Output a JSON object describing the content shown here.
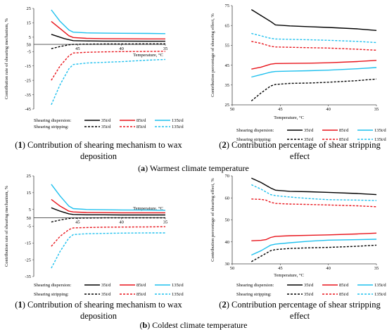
{
  "figure": {
    "section_a": {
      "letter": "a",
      "title": "Warmest climate temperature"
    },
    "section_b": {
      "letter": "b",
      "title": "Coldest climate temperature"
    }
  },
  "chart_data": [
    {
      "id": "a1",
      "type": "line",
      "caption": {
        "num": "1",
        "line1": "Contribution of shearing mechanism to wax",
        "line2": "deposition"
      },
      "xlabel": "Temperature, °C",
      "ylabel": "Contribution rate of shearing mechanism, %",
      "xlim": [
        50,
        35
      ],
      "ylim": [
        -45,
        25
      ],
      "xticks": [
        45,
        40,
        35
      ],
      "xtick_labels": [
        "45",
        "40",
        "35"
      ],
      "yticks": [
        25,
        15,
        5,
        -5,
        -15,
        -25,
        -35,
        -45
      ],
      "ytick_labels": [
        "25",
        "15",
        "5",
        "-5",
        "-15",
        "-25",
        "-35",
        "-45"
      ],
      "origin_label": "50",
      "legend": {
        "dispersion_label": "Shearing dispersion:",
        "stripping_label": "Shearing stripping:",
        "entries": [
          "35t/d",
          "85t/d",
          "135t/d"
        ]
      },
      "series": [
        {
          "name": "35t/d",
          "group": "dispersion",
          "color": "#000000",
          "dashed": false,
          "x": [
            48,
            46.5,
            45.5,
            44,
            42,
            40,
            37,
            35
          ],
          "y": [
            7,
            4,
            2.6,
            2.4,
            2.3,
            2.3,
            2.2,
            2.2
          ]
        },
        {
          "name": "85t/d",
          "group": "dispersion",
          "color": "#e8141b",
          "dashed": false,
          "x": [
            48,
            47,
            46,
            45.5,
            44,
            42,
            40,
            37,
            35
          ],
          "y": [
            16,
            11,
            6,
            4.8,
            4.2,
            4,
            3.9,
            3.8,
            3.8
          ]
        },
        {
          "name": "135t/d",
          "group": "dispersion",
          "color": "#1ec0ee",
          "dashed": false,
          "x": [
            48,
            47,
            46,
            45.5,
            44,
            42,
            40,
            37,
            35
          ],
          "y": [
            24,
            16,
            10,
            8.5,
            8,
            7.8,
            7.7,
            7.6,
            7.5
          ]
        },
        {
          "name": "35t/d",
          "group": "stripping",
          "color": "#000000",
          "dashed": true,
          "x": [
            48,
            47,
            46,
            45.5,
            44,
            42,
            40,
            37,
            35
          ],
          "y": [
            -3,
            -1.5,
            -0.3,
            0,
            0.2,
            0.3,
            0.3,
            0.4,
            0.4
          ]
        },
        {
          "name": "85t/d",
          "group": "stripping",
          "color": "#e8141b",
          "dashed": true,
          "x": [
            48,
            47,
            46,
            45.5,
            44,
            42,
            40,
            37,
            35
          ],
          "y": [
            -25,
            -15,
            -8,
            -6,
            -5.5,
            -5.2,
            -5,
            -4.9,
            -4.8
          ]
        },
        {
          "name": "135t/d",
          "group": "stripping",
          "color": "#1ec0ee",
          "dashed": true,
          "x": [
            48,
            47,
            46,
            45.5,
            44,
            42,
            40,
            37,
            35
          ],
          "y": [
            -42,
            -28,
            -17,
            -14,
            -13,
            -12.5,
            -12,
            -11,
            -10.5
          ]
        }
      ]
    },
    {
      "id": "a2",
      "type": "line",
      "caption": {
        "num": "2",
        "line1": "Contribution percentage of shear stripping",
        "line2": "effect"
      },
      "xlabel": "Temperature, °C",
      "ylabel": "Contribution percentage of shearing effect, %",
      "xlim": [
        50,
        35
      ],
      "ylim": [
        25,
        75
      ],
      "xticks": [
        50,
        45,
        40,
        35
      ],
      "xtick_labels": [
        "50",
        "45",
        "40",
        "35"
      ],
      "yticks": [
        25,
        35,
        45,
        55,
        65,
        75
      ],
      "ytick_labels": [
        "25",
        "35",
        "45",
        "55",
        "65",
        "75"
      ],
      "legend": {
        "dispersion_label": "Shearing dispersion:",
        "stripping_label": "Shearing stripping:",
        "entries": [
          "35t/d",
          "85t/d",
          "135t/d"
        ]
      },
      "series": [
        {
          "name": "35t/d",
          "group": "dispersion",
          "color": "#000000",
          "dashed": false,
          "x": [
            48,
            47,
            46,
            45.5,
            44,
            42,
            40,
            37,
            35
          ],
          "y": [
            73,
            70,
            67,
            65.3,
            64.8,
            64.4,
            64,
            63.3,
            62.5
          ]
        },
        {
          "name": "85t/d",
          "group": "dispersion",
          "color": "#e8141b",
          "dashed": false,
          "x": [
            48,
            47,
            46,
            45.5,
            44,
            42,
            40,
            37,
            35
          ],
          "y": [
            43,
            44,
            45.5,
            45.8,
            45.9,
            46,
            46.2,
            46.8,
            47.4
          ]
        },
        {
          "name": "135t/d",
          "group": "dispersion",
          "color": "#1ec0ee",
          "dashed": false,
          "x": [
            48,
            47,
            46,
            45.5,
            44,
            42,
            40,
            37,
            35
          ],
          "y": [
            39,
            40.2,
            41.5,
            41.8,
            42,
            42.2,
            42.5,
            43.2,
            43.8
          ]
        },
        {
          "name": "35t/d",
          "group": "stripping",
          "color": "#000000",
          "dashed": true,
          "x": [
            48,
            47,
            46,
            45.5,
            44,
            42,
            40,
            37,
            35
          ],
          "y": [
            27,
            31,
            34.5,
            35.3,
            35.8,
            36,
            36.4,
            37.2,
            38
          ]
        },
        {
          "name": "85t/d",
          "group": "stripping",
          "color": "#e8141b",
          "dashed": true,
          "x": [
            48,
            47,
            46,
            45.5,
            44,
            42,
            40,
            37,
            35
          ],
          "y": [
            57,
            56,
            54.5,
            54.2,
            54,
            53.8,
            53.6,
            53,
            52.5
          ]
        },
        {
          "name": "135t/d",
          "group": "stripping",
          "color": "#1ec0ee",
          "dashed": true,
          "x": [
            48,
            47,
            46,
            45.5,
            44,
            42,
            40,
            37,
            35
          ],
          "y": [
            61,
            59.8,
            58.5,
            58.2,
            58,
            57.8,
            57.5,
            57,
            56.4
          ]
        }
      ]
    },
    {
      "id": "b1",
      "type": "line",
      "caption": {
        "num": "1",
        "line1": "Contribution of shearing mechanism to wax",
        "line2": "deposition"
      },
      "xlabel": "Temperature, °C",
      "ylabel": "Contribution rate of shearing mechanism, %",
      "xlim": [
        50,
        35
      ],
      "ylim": [
        -35,
        25
      ],
      "xticks": [
        45,
        40,
        35
      ],
      "xtick_labels": [
        "45",
        "40",
        "35"
      ],
      "yticks": [
        25,
        15,
        5,
        -5,
        -15,
        -25,
        -35
      ],
      "ytick_labels": [
        "25",
        "15",
        "5",
        "-5",
        "-15",
        "-25",
        "-35"
      ],
      "origin_label": "50",
      "legend": {
        "dispersion_label": "Shearing dispersion:",
        "stripping_label": "Shearing stripping:",
        "entries": [
          "35t/d",
          "85t/d",
          "135t/d"
        ]
      },
      "series": [
        {
          "name": "35t/d",
          "group": "dispersion",
          "color": "#000000",
          "dashed": false,
          "x": [
            48,
            47,
            46,
            45.5,
            44,
            42,
            40,
            37,
            35
          ],
          "y": [
            6,
            4,
            2.4,
            2,
            1.8,
            1.8,
            1.7,
            1.7,
            1.7
          ]
        },
        {
          "name": "85t/d",
          "group": "dispersion",
          "color": "#e8141b",
          "dashed": false,
          "x": [
            48,
            47,
            46,
            45.5,
            44,
            42,
            40,
            37,
            35
          ],
          "y": [
            11,
            7,
            4,
            3.5,
            3.2,
            3.1,
            3,
            3,
            3
          ]
        },
        {
          "name": "135t/d",
          "group": "dispersion",
          "color": "#1ec0ee",
          "dashed": false,
          "x": [
            48,
            47,
            46,
            45.5,
            44,
            42,
            40,
            37,
            35
          ],
          "y": [
            20,
            13,
            7,
            5.5,
            5,
            4.8,
            4.7,
            4.6,
            4.5
          ]
        },
        {
          "name": "35t/d",
          "group": "stripping",
          "color": "#000000",
          "dashed": true,
          "x": [
            48,
            47,
            46,
            45.5,
            44,
            42,
            40,
            37,
            35
          ],
          "y": [
            -2.5,
            -1.3,
            -0.4,
            -0.2,
            -0.1,
            0,
            0,
            0,
            0
          ]
        },
        {
          "name": "85t/d",
          "group": "stripping",
          "color": "#e8141b",
          "dashed": true,
          "x": [
            48,
            47,
            46,
            45.5,
            44,
            42,
            40,
            37,
            35
          ],
          "y": [
            -17,
            -11,
            -7,
            -6,
            -5.8,
            -5.6,
            -5.5,
            -5.4,
            -5.3
          ]
        },
        {
          "name": "135t/d",
          "group": "stripping",
          "color": "#1ec0ee",
          "dashed": true,
          "x": [
            48,
            47,
            46,
            45.5,
            44,
            42,
            40,
            37,
            35
          ],
          "y": [
            -30,
            -20,
            -12,
            -10,
            -9.5,
            -9.3,
            -9.1,
            -9,
            -9
          ]
        }
      ]
    },
    {
      "id": "b2",
      "type": "line",
      "caption": {
        "num": "2",
        "line1": "Contribution percentage of shear stripping",
        "line2": "effect"
      },
      "xlabel": "Temperature, °C",
      "ylabel": "Contribution percentage of shearing effect, %",
      "xlim": [
        50,
        35
      ],
      "ylim": [
        30,
        70
      ],
      "xticks": [
        50,
        45,
        40,
        35
      ],
      "xtick_labels": [
        "50",
        "45",
        "40",
        "35"
      ],
      "yticks": [
        30,
        40,
        50,
        60,
        70
      ],
      "ytick_labels": [
        "30",
        "40",
        "50",
        "60",
        "70"
      ],
      "legend": {
        "dispersion_label": "Shearing dispersion:",
        "stripping_label": "Shearing stripping:",
        "entries": [
          "35t/d",
          "85t/d",
          "135t/d"
        ]
      },
      "series": [
        {
          "name": "35t/d",
          "group": "dispersion",
          "color": "#000000",
          "dashed": false,
          "x": [
            48,
            47,
            46,
            45.5,
            44,
            42,
            40,
            37,
            35
          ],
          "y": [
            69,
            67,
            64.5,
            63.5,
            63,
            62.8,
            62.5,
            62,
            61.5
          ]
        },
        {
          "name": "85t/d",
          "group": "dispersion",
          "color": "#e8141b",
          "dashed": false,
          "x": [
            48,
            47,
            46.5,
            46,
            45.5,
            44,
            42,
            40,
            37,
            35
          ],
          "y": [
            40.5,
            40.7,
            41,
            42,
            42.5,
            42.8,
            43,
            43.2,
            43.6,
            44
          ]
        },
        {
          "name": "135t/d",
          "group": "dispersion",
          "color": "#1ec0ee",
          "dashed": false,
          "x": [
            48,
            47,
            46,
            45.5,
            44,
            42,
            40,
            37,
            35
          ],
          "y": [
            34,
            36,
            38.5,
            39,
            39.6,
            40.3,
            40.8,
            41,
            41.2
          ]
        },
        {
          "name": "35t/d",
          "group": "stripping",
          "color": "#000000",
          "dashed": true,
          "x": [
            48,
            47,
            46,
            45.5,
            44,
            42,
            40,
            37,
            35
          ],
          "y": [
            31,
            33.5,
            36,
            36.5,
            37,
            37.3,
            37.5,
            38,
            38.5
          ]
        },
        {
          "name": "85t/d",
          "group": "stripping",
          "color": "#e8141b",
          "dashed": true,
          "x": [
            48,
            47,
            46.5,
            46,
            45.5,
            44,
            42,
            40,
            37,
            35
          ],
          "y": [
            59.5,
            59.3,
            59,
            58,
            57.5,
            57.2,
            57,
            56.8,
            56.4,
            56
          ]
        },
        {
          "name": "135t/d",
          "group": "stripping",
          "color": "#1ec0ee",
          "dashed": true,
          "x": [
            48,
            47,
            46,
            45.5,
            44,
            42,
            40,
            37,
            35
          ],
          "y": [
            66,
            64,
            61.5,
            61,
            60.4,
            59.7,
            59.2,
            59,
            58.8
          ]
        }
      ]
    }
  ]
}
